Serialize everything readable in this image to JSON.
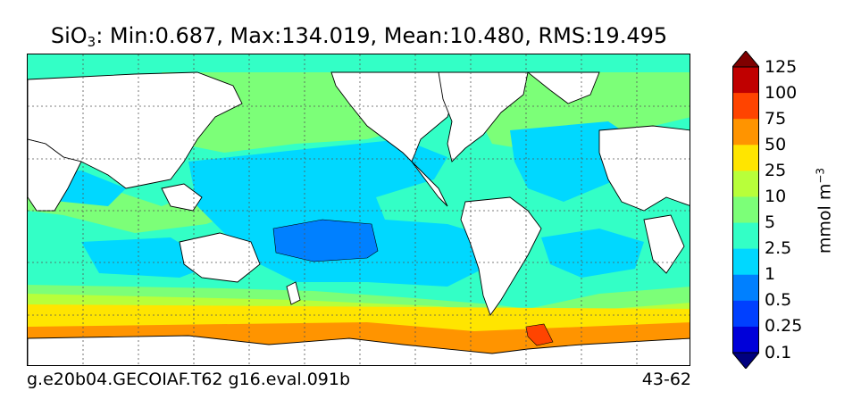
{
  "title": {
    "prefix": "SiO",
    "subscript": "3",
    "stats": ": Min:0.687, Max:134.019, Mean:10.480, RMS:19.495"
  },
  "footer": {
    "case_name": "g.e20b04.GECOIAF.T62 g16.eval.091b",
    "years": "43-62"
  },
  "colorbar": {
    "units_base": "mmol m",
    "units_exponent": "−3",
    "levels": [
      "0.1",
      "0.25",
      "0.5",
      "1",
      "2.5",
      "5",
      "10",
      "25",
      "50",
      "75",
      "100",
      "125"
    ],
    "colors": [
      "#00007f",
      "#0000d9",
      "#0040ff",
      "#0080ff",
      "#00d8ff",
      "#33ffc6",
      "#7cff78",
      "#b8ff3a",
      "#ffe500",
      "#ff9400",
      "#ff4400",
      "#c00000",
      "#7f0000"
    ]
  },
  "map": {
    "land_color": "#ffffff",
    "grid": "dashed",
    "fill_levels": {
      "southern_ocean_high": "#ff9400",
      "southern_ocean_mid": "#ffe500",
      "north_pacific": "#7cff78",
      "subtropics": "#33ffc6",
      "tropical_gyres": "#00d8ff",
      "south_pacific_min": "#0080ff",
      "weddell_max": "#ff4400"
    }
  }
}
